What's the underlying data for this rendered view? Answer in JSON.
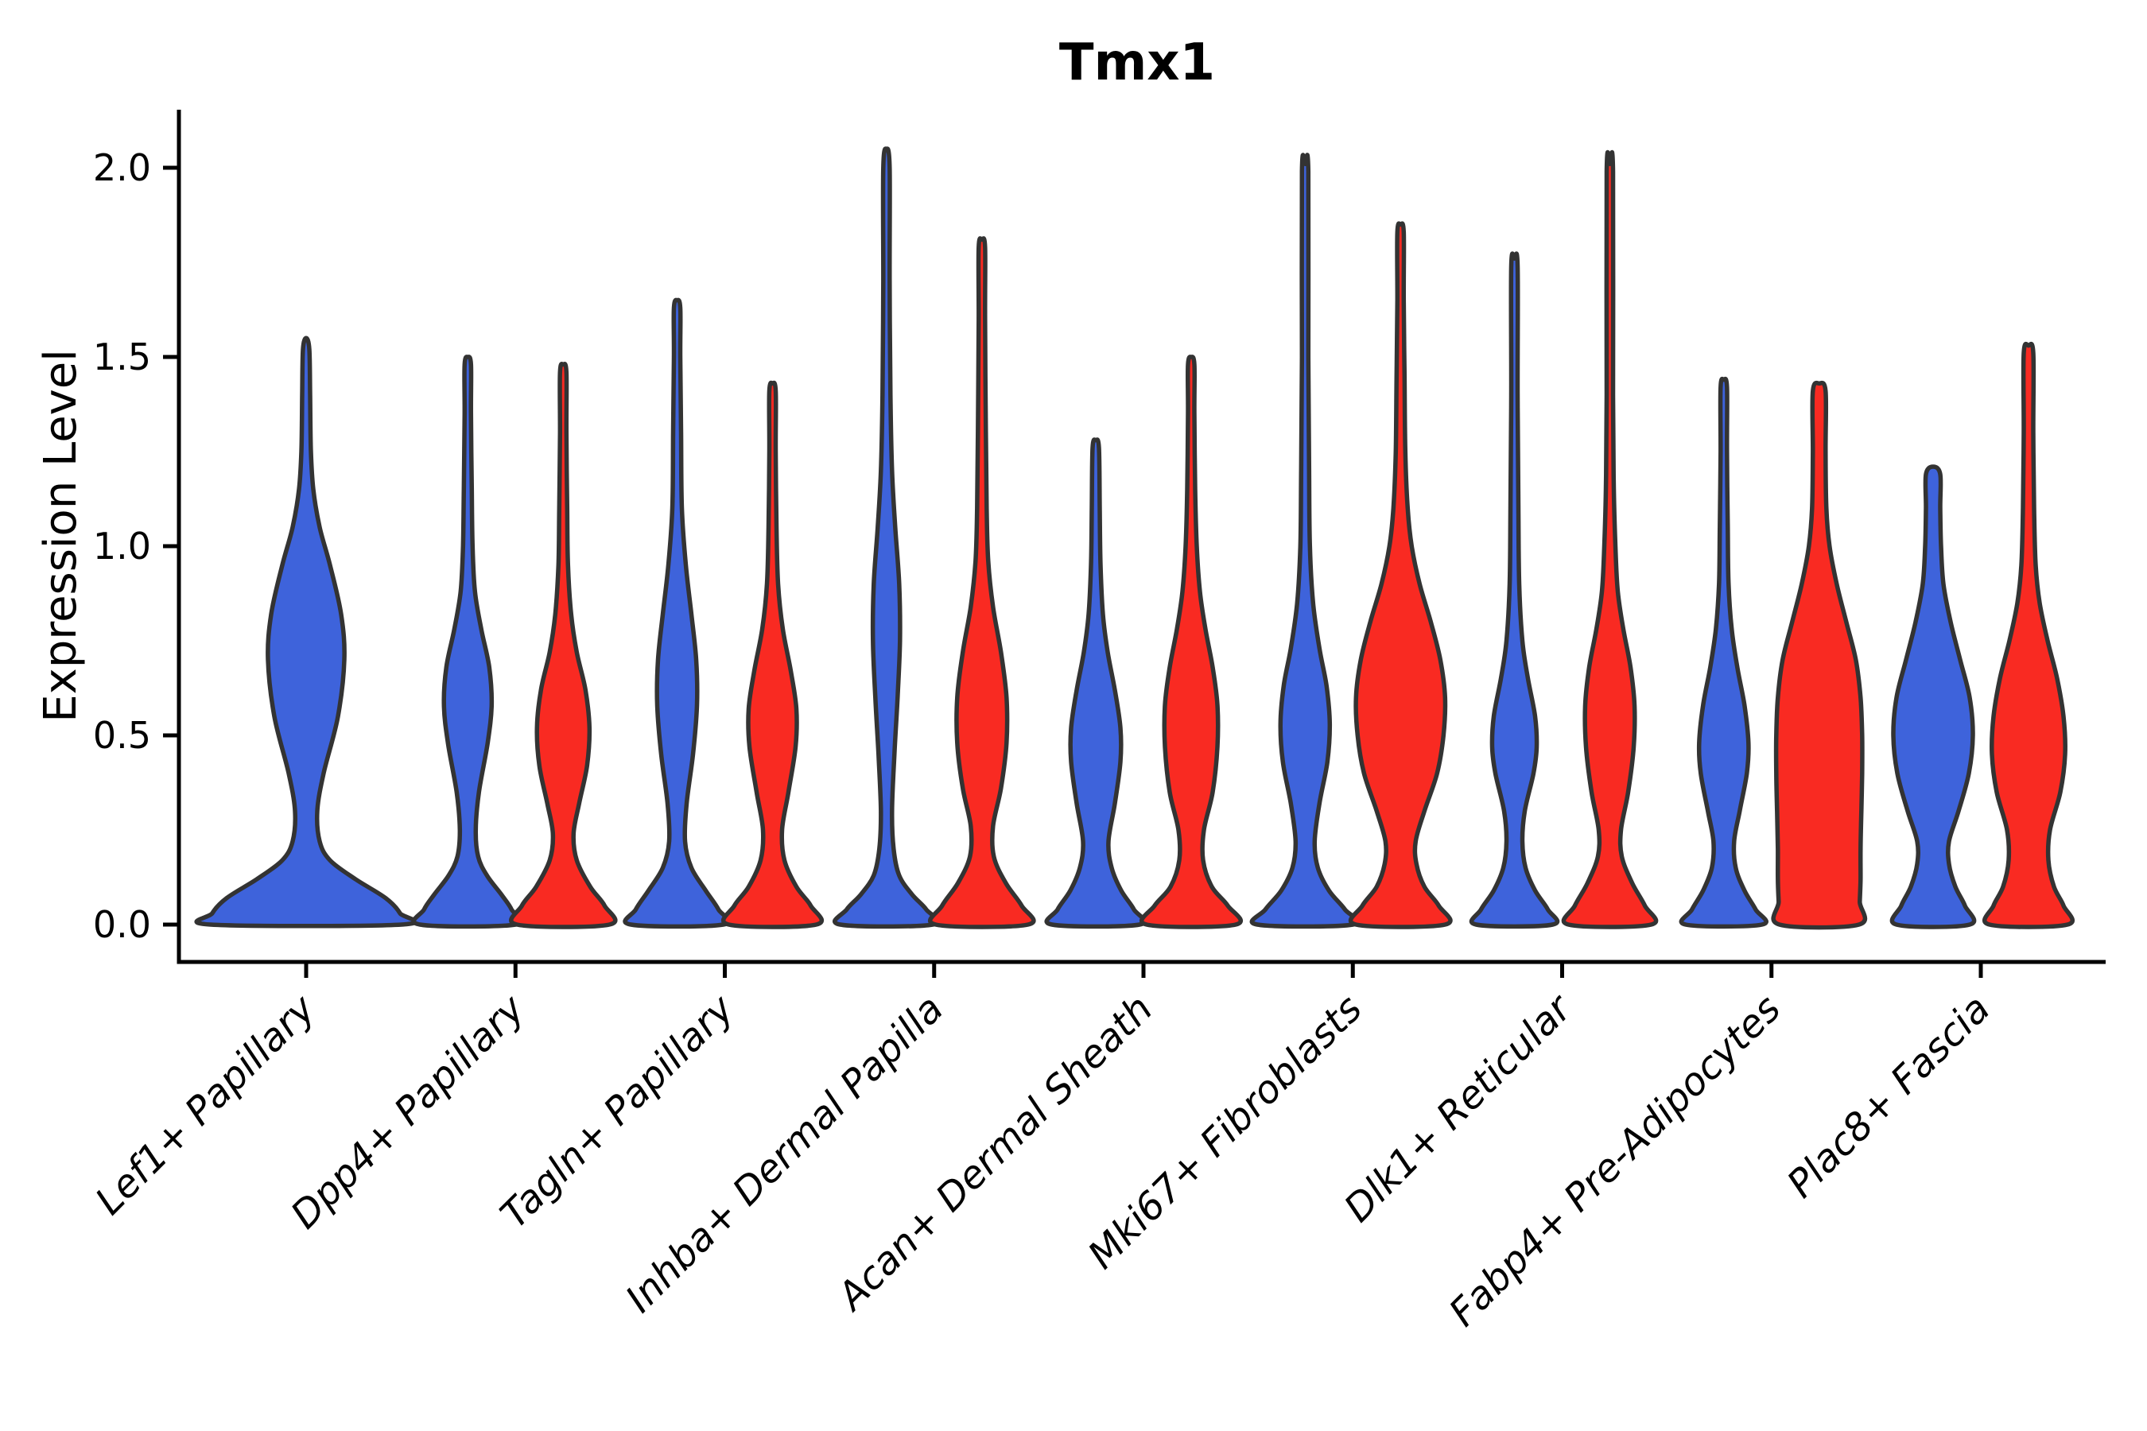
{
  "chart_data": {
    "type": "violin",
    "title": "Tmx1",
    "ylabel": "Expression Level",
    "ylim": [
      -0.1,
      2.16
    ],
    "grid": false,
    "legend": "none",
    "yticks": [
      {
        "value": 0.0,
        "label": "0.0"
      },
      {
        "value": 0.5,
        "label": "0.5"
      },
      {
        "value": 1.0,
        "label": "1.0"
      },
      {
        "value": 1.5,
        "label": "1.5"
      },
      {
        "value": 2.0,
        "label": "2.0"
      }
    ],
    "categories": [
      "Lef1+ Papillary",
      "Dpp4+ Papillary",
      "Tagln+ Papillary",
      "Inhba+ Dermal Papilla",
      "Acan+ Dermal Sheath",
      "Mki67+ Fibroblasts",
      "Dlk1+ Reticular",
      "Fabp4+ Pre-Adipocytes",
      "Plac8+ Fascia"
    ],
    "groups": [
      {
        "id": "blue",
        "color": "#3E63DB"
      },
      {
        "id": "red",
        "color": "#F92A22"
      }
    ],
    "edge": {
      "color": "#333333",
      "width": 5.5
    },
    "violins": [
      {
        "category": 0,
        "group": "blue",
        "span": "full",
        "max_expression": 1.55,
        "profile": [
          [
            0,
            120
          ],
          [
            0.03,
            118
          ],
          [
            0.07,
            100
          ],
          [
            0.12,
            62
          ],
          [
            0.17,
            30
          ],
          [
            0.22,
            17
          ],
          [
            0.3,
            14
          ],
          [
            0.4,
            22
          ],
          [
            0.55,
            40
          ],
          [
            0.7,
            48
          ],
          [
            0.82,
            44
          ],
          [
            0.95,
            30
          ],
          [
            1.05,
            17
          ],
          [
            1.15,
            9
          ],
          [
            1.25,
            6
          ],
          [
            1.4,
            5
          ],
          [
            1.52,
            4
          ],
          [
            1.55,
            0
          ]
        ]
      },
      {
        "category": 1,
        "group": "blue",
        "span": "half",
        "max_expression": 1.5,
        "profile": [
          [
            0,
            60
          ],
          [
            0.04,
            55
          ],
          [
            0.08,
            42
          ],
          [
            0.13,
            24
          ],
          [
            0.18,
            13
          ],
          [
            0.25,
            10
          ],
          [
            0.35,
            14
          ],
          [
            0.48,
            25
          ],
          [
            0.58,
            30
          ],
          [
            0.68,
            27
          ],
          [
            0.78,
            17
          ],
          [
            0.88,
            9
          ],
          [
            1.0,
            6
          ],
          [
            1.15,
            5
          ],
          [
            1.35,
            4
          ],
          [
            1.48,
            4
          ],
          [
            1.5,
            0
          ]
        ]
      },
      {
        "category": 1,
        "group": "red",
        "span": "half",
        "max_expression": 1.48,
        "profile": [
          [
            0,
            58
          ],
          [
            0.05,
            52
          ],
          [
            0.1,
            34
          ],
          [
            0.17,
            17
          ],
          [
            0.24,
            13
          ],
          [
            0.32,
            20
          ],
          [
            0.42,
            30
          ],
          [
            0.52,
            33
          ],
          [
            0.62,
            28
          ],
          [
            0.72,
            17
          ],
          [
            0.82,
            10
          ],
          [
            0.95,
            6
          ],
          [
            1.1,
            5
          ],
          [
            1.3,
            4
          ],
          [
            1.46,
            4
          ],
          [
            1.48,
            0
          ]
        ]
      },
      {
        "category": 2,
        "group": "blue",
        "span": "half",
        "max_expression": 1.65,
        "profile": [
          [
            0,
            58
          ],
          [
            0.04,
            52
          ],
          [
            0.09,
            36
          ],
          [
            0.15,
            18
          ],
          [
            0.22,
            10
          ],
          [
            0.32,
            12
          ],
          [
            0.45,
            20
          ],
          [
            0.58,
            25
          ],
          [
            0.7,
            24
          ],
          [
            0.82,
            18
          ],
          [
            0.95,
            11
          ],
          [
            1.1,
            6
          ],
          [
            1.3,
            5
          ],
          [
            1.5,
            4
          ],
          [
            1.63,
            4
          ],
          [
            1.65,
            0
          ]
        ]
      },
      {
        "category": 2,
        "group": "red",
        "span": "half",
        "max_expression": 1.43,
        "profile": [
          [
            0,
            55
          ],
          [
            0.05,
            48
          ],
          [
            0.1,
            30
          ],
          [
            0.17,
            15
          ],
          [
            0.25,
            12
          ],
          [
            0.35,
            20
          ],
          [
            0.47,
            29
          ],
          [
            0.57,
            30
          ],
          [
            0.67,
            23
          ],
          [
            0.78,
            13
          ],
          [
            0.9,
            7
          ],
          [
            1.05,
            5
          ],
          [
            1.25,
            4
          ],
          [
            1.41,
            4
          ],
          [
            1.43,
            0
          ]
        ]
      },
      {
        "category": 3,
        "group": "blue",
        "span": "half",
        "max_expression": 2.05,
        "profile": [
          [
            0,
            58
          ],
          [
            0.04,
            50
          ],
          [
            0.08,
            32
          ],
          [
            0.13,
            16
          ],
          [
            0.2,
            9
          ],
          [
            0.3,
            7
          ],
          [
            0.45,
            10
          ],
          [
            0.6,
            14
          ],
          [
            0.75,
            17
          ],
          [
            0.9,
            16
          ],
          [
            1.05,
            11
          ],
          [
            1.2,
            7
          ],
          [
            1.4,
            5
          ],
          [
            1.7,
            4
          ],
          [
            2.0,
            4
          ],
          [
            2.05,
            0
          ]
        ]
      },
      {
        "category": 3,
        "group": "red",
        "span": "half",
        "max_expression": 1.81,
        "profile": [
          [
            0,
            58
          ],
          [
            0.05,
            50
          ],
          [
            0.11,
            30
          ],
          [
            0.18,
            15
          ],
          [
            0.26,
            14
          ],
          [
            0.36,
            24
          ],
          [
            0.48,
            31
          ],
          [
            0.6,
            31
          ],
          [
            0.72,
            24
          ],
          [
            0.84,
            14
          ],
          [
            0.96,
            8
          ],
          [
            1.1,
            6
          ],
          [
            1.3,
            5
          ],
          [
            1.6,
            4
          ],
          [
            1.79,
            4
          ],
          [
            1.81,
            0
          ]
        ]
      },
      {
        "category": 4,
        "group": "blue",
        "span": "half",
        "max_expression": 1.28,
        "profile": [
          [
            0,
            55
          ],
          [
            0.04,
            48
          ],
          [
            0.09,
            32
          ],
          [
            0.15,
            20
          ],
          [
            0.22,
            16
          ],
          [
            0.32,
            24
          ],
          [
            0.43,
            31
          ],
          [
            0.52,
            31
          ],
          [
            0.62,
            24
          ],
          [
            0.72,
            15
          ],
          [
            0.82,
            9
          ],
          [
            0.95,
            6
          ],
          [
            1.1,
            5
          ],
          [
            1.26,
            4
          ],
          [
            1.28,
            0
          ]
        ]
      },
      {
        "category": 4,
        "group": "red",
        "span": "half",
        "max_expression": 1.5,
        "profile": [
          [
            0,
            56
          ],
          [
            0.05,
            46
          ],
          [
            0.1,
            26
          ],
          [
            0.17,
            15
          ],
          [
            0.25,
            16
          ],
          [
            0.35,
            27
          ],
          [
            0.47,
            33
          ],
          [
            0.58,
            33
          ],
          [
            0.68,
            27
          ],
          [
            0.78,
            18
          ],
          [
            0.88,
            11
          ],
          [
            1.0,
            7
          ],
          [
            1.15,
            5
          ],
          [
            1.35,
            4
          ],
          [
            1.48,
            4
          ],
          [
            1.5,
            0
          ]
        ]
      },
      {
        "category": 5,
        "group": "blue",
        "span": "half",
        "max_expression": 2.01,
        "profile": [
          [
            0,
            60
          ],
          [
            0.04,
            50
          ],
          [
            0.09,
            30
          ],
          [
            0.15,
            16
          ],
          [
            0.22,
            12
          ],
          [
            0.32,
            18
          ],
          [
            0.43,
            28
          ],
          [
            0.53,
            31
          ],
          [
            0.63,
            27
          ],
          [
            0.73,
            18
          ],
          [
            0.85,
            10
          ],
          [
            1.0,
            6
          ],
          [
            1.2,
            5
          ],
          [
            1.5,
            4
          ],
          [
            1.99,
            4
          ],
          [
            2.01,
            0
          ]
        ]
      },
      {
        "category": 5,
        "group": "red",
        "span": "half",
        "max_expression": 1.85,
        "profile": [
          [
            0,
            56
          ],
          [
            0.05,
            48
          ],
          [
            0.1,
            30
          ],
          [
            0.16,
            20
          ],
          [
            0.22,
            19
          ],
          [
            0.3,
            30
          ],
          [
            0.4,
            46
          ],
          [
            0.5,
            54
          ],
          [
            0.6,
            56
          ],
          [
            0.7,
            50
          ],
          [
            0.8,
            38
          ],
          [
            0.9,
            24
          ],
          [
            1.0,
            14
          ],
          [
            1.1,
            9
          ],
          [
            1.25,
            6
          ],
          [
            1.45,
            5
          ],
          [
            1.65,
            4
          ],
          [
            1.83,
            4
          ],
          [
            1.85,
            0
          ]
        ]
      },
      {
        "category": 6,
        "group": "blue",
        "span": "half",
        "max_expression": 1.76,
        "profile": [
          [
            0,
            48
          ],
          [
            0.04,
            42
          ],
          [
            0.09,
            26
          ],
          [
            0.15,
            14
          ],
          [
            0.22,
            10
          ],
          [
            0.3,
            13
          ],
          [
            0.4,
            24
          ],
          [
            0.47,
            28
          ],
          [
            0.55,
            26
          ],
          [
            0.65,
            17
          ],
          [
            0.75,
            10
          ],
          [
            0.9,
            6
          ],
          [
            1.1,
            5
          ],
          [
            1.4,
            4
          ],
          [
            1.74,
            4
          ],
          [
            1.76,
            0
          ]
        ]
      },
      {
        "category": 6,
        "group": "red",
        "span": "half",
        "max_expression": 2.01,
        "profile": [
          [
            0,
            52
          ],
          [
            0.05,
            44
          ],
          [
            0.11,
            28
          ],
          [
            0.18,
            15
          ],
          [
            0.25,
            14
          ],
          [
            0.35,
            23
          ],
          [
            0.47,
            30
          ],
          [
            0.58,
            31
          ],
          [
            0.68,
            26
          ],
          [
            0.78,
            17
          ],
          [
            0.88,
            10
          ],
          [
            1.0,
            7
          ],
          [
            1.15,
            5
          ],
          [
            1.4,
            4
          ],
          [
            1.99,
            4
          ],
          [
            2.01,
            0
          ]
        ]
      },
      {
        "category": 7,
        "group": "blue",
        "span": "half",
        "max_expression": 1.44,
        "profile": [
          [
            0,
            48
          ],
          [
            0.04,
            40
          ],
          [
            0.09,
            26
          ],
          [
            0.15,
            15
          ],
          [
            0.22,
            13
          ],
          [
            0.3,
            20
          ],
          [
            0.4,
            29
          ],
          [
            0.48,
            31
          ],
          [
            0.58,
            26
          ],
          [
            0.68,
            17
          ],
          [
            0.78,
            10
          ],
          [
            0.9,
            6
          ],
          [
            1.05,
            5
          ],
          [
            1.25,
            4
          ],
          [
            1.42,
            4
          ],
          [
            1.44,
            0
          ]
        ]
      },
      {
        "category": 7,
        "group": "red",
        "span": "half",
        "max_expression": 1.43,
        "profile": [
          [
            0,
            50
          ],
          [
            0.06,
            51
          ],
          [
            0.12,
            52
          ],
          [
            0.2,
            52
          ],
          [
            0.3,
            53
          ],
          [
            0.4,
            54
          ],
          [
            0.5,
            54
          ],
          [
            0.6,
            52
          ],
          [
            0.7,
            46
          ],
          [
            0.8,
            34
          ],
          [
            0.9,
            22
          ],
          [
            1.0,
            13
          ],
          [
            1.1,
            9
          ],
          [
            1.25,
            8
          ],
          [
            1.41,
            8
          ],
          [
            1.43,
            0
          ]
        ]
      },
      {
        "category": 8,
        "group": "blue",
        "span": "half",
        "max_expression": 1.21,
        "profile": [
          [
            0,
            46
          ],
          [
            0.05,
            40
          ],
          [
            0.1,
            28
          ],
          [
            0.16,
            20
          ],
          [
            0.22,
            20
          ],
          [
            0.3,
            32
          ],
          [
            0.4,
            45
          ],
          [
            0.5,
            50
          ],
          [
            0.6,
            46
          ],
          [
            0.7,
            34
          ],
          [
            0.8,
            22
          ],
          [
            0.9,
            13
          ],
          [
            1.0,
            10
          ],
          [
            1.1,
            9
          ],
          [
            1.19,
            9
          ],
          [
            1.21,
            0
          ]
        ]
      },
      {
        "category": 8,
        "group": "red",
        "span": "half",
        "max_expression": 1.53,
        "profile": [
          [
            0,
            49
          ],
          [
            0.05,
            44
          ],
          [
            0.1,
            32
          ],
          [
            0.17,
            25
          ],
          [
            0.25,
            27
          ],
          [
            0.35,
            40
          ],
          [
            0.45,
            46
          ],
          [
            0.55,
            44
          ],
          [
            0.65,
            36
          ],
          [
            0.75,
            24
          ],
          [
            0.85,
            14
          ],
          [
            0.95,
            9
          ],
          [
            1.1,
            7
          ],
          [
            1.3,
            6
          ],
          [
            1.51,
            6
          ],
          [
            1.53,
            0
          ]
        ]
      }
    ]
  }
}
